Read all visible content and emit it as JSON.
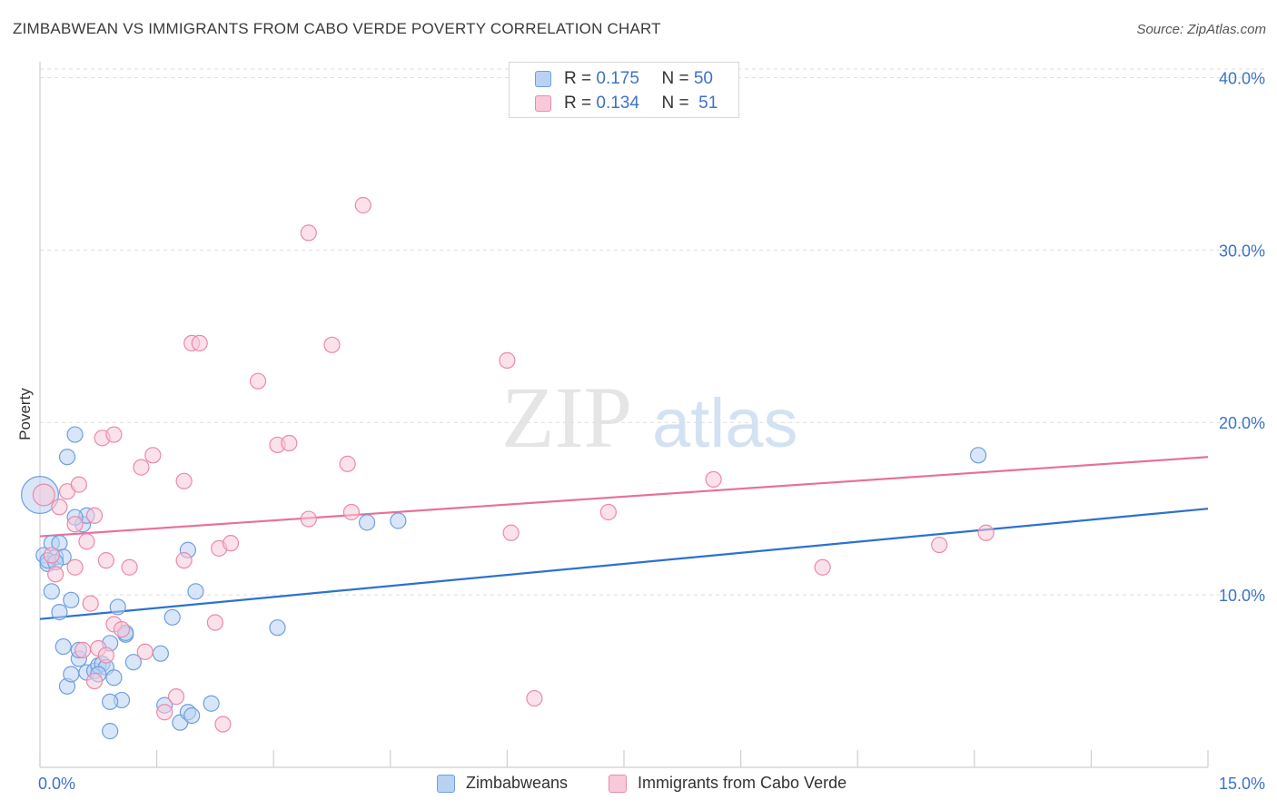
{
  "header": {
    "title": "ZIMBABWEAN VS IMMIGRANTS FROM CABO VERDE POVERTY CORRELATION CHART",
    "source": "Source: ZipAtlas.com"
  },
  "legend_top": {
    "rows": [
      {
        "r_label": "R = ",
        "r_value": "0.175",
        "n_label": "N = ",
        "n_value": "50"
      },
      {
        "r_label": "R = ",
        "r_value": "0.134",
        "n_label": "N = ",
        "n_value": " 51"
      }
    ]
  },
  "colors": {
    "blue_fill": "#b9d2f3",
    "blue_stroke": "#6f9fe0",
    "blue_line": "#2b72cf",
    "pink_fill": "#f8c9d8",
    "pink_stroke": "#ea8aa9",
    "pink_line": "#e8709a",
    "tick_text": "#3b73c8",
    "grid": "#dedede"
  },
  "watermark": {
    "zip": "ZIP",
    "atlas": "atlas"
  },
  "chart_data": {
    "type": "scatter",
    "title": "ZIMBABWEAN VS IMMIGRANTS FROM CABO VERDE POVERTY CORRELATION CHART",
    "xlabel": "",
    "ylabel": "Poverty",
    "xlim": [
      0,
      15
    ],
    "ylim": [
      0,
      40.5
    ],
    "x_ticks": [
      0,
      1.5,
      3,
      4.5,
      6,
      7.5,
      9,
      10.5,
      12,
      13.5,
      15
    ],
    "x_tick_labels": [
      {
        "value": 0,
        "label": "0.0%"
      },
      {
        "value": 15,
        "label": "15.0%"
      }
    ],
    "y_ticks": [
      {
        "value": 10,
        "label": "10.0%"
      },
      {
        "value": 20,
        "label": "20.0%"
      },
      {
        "value": 30,
        "label": "30.0%"
      },
      {
        "value": 40,
        "label": "40.0%"
      }
    ],
    "grid": true,
    "legend_position": "top-center",
    "series": [
      {
        "name": "Zimbabweans",
        "color": "blue",
        "r": 0.175,
        "n": 50,
        "trend": {
          "x0": 0,
          "y0": 8.6,
          "x1": 15,
          "y1": 15.0
        },
        "points": [
          [
            0.0,
            15.8,
            2.4
          ],
          [
            0.05,
            12.3,
            1
          ],
          [
            0.1,
            11.8,
            1
          ],
          [
            0.15,
            13.0,
            1
          ],
          [
            0.2,
            12.2,
            1
          ],
          [
            0.25,
            13.0,
            1
          ],
          [
            0.3,
            12.2,
            1
          ],
          [
            0.35,
            18.0,
            1
          ],
          [
            0.45,
            19.3,
            1
          ],
          [
            0.4,
            9.7,
            1
          ],
          [
            0.55,
            14.1,
            1
          ],
          [
            0.6,
            5.5,
            1
          ],
          [
            0.3,
            7.0,
            1
          ],
          [
            0.25,
            9.0,
            1
          ],
          [
            0.35,
            4.7,
            1
          ],
          [
            0.4,
            5.4,
            1
          ],
          [
            0.5,
            6.3,
            1
          ],
          [
            0.7,
            5.6,
            1
          ],
          [
            0.75,
            5.9,
            1
          ],
          [
            0.8,
            6.0,
            1
          ],
          [
            0.85,
            5.8,
            1
          ],
          [
            0.95,
            5.2,
            1
          ],
          [
            0.9,
            7.2,
            1
          ],
          [
            1.05,
            3.9,
            1
          ],
          [
            1.1,
            7.7,
            1
          ],
          [
            1.2,
            6.1,
            1
          ],
          [
            0.9,
            3.8,
            1
          ],
          [
            0.9,
            2.1,
            1
          ],
          [
            1.0,
            9.3,
            1
          ],
          [
            1.55,
            6.6,
            1
          ],
          [
            1.6,
            3.6,
            1
          ],
          [
            1.7,
            8.7,
            1
          ],
          [
            1.8,
            2.6,
            1
          ],
          [
            1.9,
            3.2,
            1
          ],
          [
            1.95,
            3.0,
            1
          ],
          [
            1.9,
            12.6,
            1
          ],
          [
            2.0,
            10.2,
            1
          ],
          [
            2.2,
            3.7,
            1
          ],
          [
            3.05,
            8.1,
            1
          ],
          [
            4.2,
            14.2,
            1
          ],
          [
            4.6,
            14.3,
            1
          ],
          [
            12.05,
            18.1,
            1
          ],
          [
            0.15,
            10.2,
            1
          ],
          [
            0.6,
            14.6,
            1
          ],
          [
            0.75,
            5.4,
            1
          ],
          [
            0.5,
            6.8,
            1
          ],
          [
            0.1,
            12.0,
            1
          ],
          [
            0.45,
            14.5,
            1
          ],
          [
            1.1,
            7.8,
            1
          ],
          [
            0.2,
            11.9,
            1
          ]
        ]
      },
      {
        "name": "Immigrants from Cabo Verde",
        "color": "pink",
        "r": 0.134,
        "n": 51,
        "trend": {
          "x0": 0,
          "y0": 13.4,
          "x1": 15,
          "y1": 18.0
        },
        "points": [
          [
            0.05,
            15.8,
            1.4
          ],
          [
            0.15,
            12.3,
            1
          ],
          [
            0.2,
            11.2,
            1
          ],
          [
            0.25,
            15.1,
            1
          ],
          [
            0.35,
            16.0,
            1
          ],
          [
            0.45,
            14.1,
            1
          ],
          [
            0.5,
            16.4,
            1
          ],
          [
            0.45,
            11.6,
            1
          ],
          [
            0.6,
            13.1,
            1
          ],
          [
            0.7,
            14.6,
            1
          ],
          [
            0.8,
            19.1,
            1
          ],
          [
            0.95,
            19.3,
            1
          ],
          [
            0.85,
            12.0,
            1
          ],
          [
            0.95,
            8.3,
            1
          ],
          [
            1.05,
            8.0,
            1
          ],
          [
            0.75,
            6.9,
            1
          ],
          [
            0.7,
            5.0,
            1
          ],
          [
            0.65,
            9.5,
            1
          ],
          [
            0.85,
            6.5,
            1
          ],
          [
            0.55,
            6.8,
            1
          ],
          [
            1.15,
            11.6,
            1
          ],
          [
            1.3,
            17.4,
            1
          ],
          [
            1.45,
            18.1,
            1
          ],
          [
            1.6,
            3.2,
            1
          ],
          [
            1.75,
            4.1,
            1
          ],
          [
            1.85,
            12.0,
            1
          ],
          [
            1.85,
            16.6,
            1
          ],
          [
            1.95,
            24.6,
            1
          ],
          [
            2.05,
            24.6,
            1
          ],
          [
            2.25,
            8.4,
            1
          ],
          [
            2.3,
            12.7,
            1
          ],
          [
            2.35,
            2.5,
            1
          ],
          [
            2.45,
            13.0,
            1
          ],
          [
            2.8,
            22.4,
            1
          ],
          [
            3.05,
            18.7,
            1
          ],
          [
            3.2,
            18.8,
            1
          ],
          [
            3.45,
            14.4,
            1
          ],
          [
            3.45,
            31.0,
            1
          ],
          [
            3.75,
            24.5,
            1
          ],
          [
            3.95,
            17.6,
            1
          ],
          [
            4.0,
            14.8,
            1
          ],
          [
            4.15,
            32.6,
            1
          ],
          [
            6.0,
            23.6,
            1
          ],
          [
            6.05,
            13.6,
            1
          ],
          [
            6.35,
            4.0,
            1
          ],
          [
            7.3,
            14.8,
            1
          ],
          [
            8.65,
            16.7,
            1
          ],
          [
            10.05,
            11.6,
            1
          ],
          [
            11.55,
            12.9,
            1
          ],
          [
            12.15,
            13.6,
            1
          ],
          [
            1.35,
            6.7,
            1
          ]
        ]
      }
    ]
  },
  "legend_bottom": {
    "items": [
      {
        "label": "Zimbabweans"
      },
      {
        "label": "Immigrants from Cabo Verde"
      }
    ]
  }
}
